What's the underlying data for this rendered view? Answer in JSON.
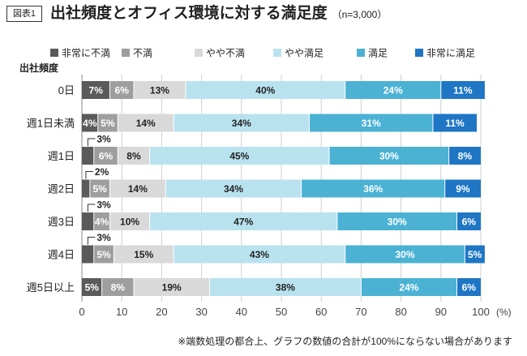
{
  "figure_label": "図表1",
  "title": "出社頻度とオフィス環境に対する満足度",
  "sample_note": "（n=3,000）",
  "footnote": "※端数処理の都合上、グラフの数値の合計が100%にならない場合があります",
  "colors": [
    "#5a5a5a",
    "#9e9e9e",
    "#d9d9d9",
    "#b9e2ef",
    "#4bb2d4",
    "#1e76c4"
  ],
  "chart_data": {
    "type": "bar",
    "orientation": "horizontal",
    "stacked": true,
    "ylabel": "出社頻度",
    "x_unit": "(%)",
    "xlim": [
      0,
      100
    ],
    "x_ticks": [
      0,
      10,
      20,
      30,
      40,
      50,
      60,
      70,
      80,
      90,
      100
    ],
    "grid": true,
    "legend_position": "top",
    "categories": [
      "0日",
      "週1日未満",
      "週1日",
      "週2日",
      "週3日",
      "週4日",
      "週5日以上"
    ],
    "series": [
      {
        "name": "非常に不満",
        "values": [
          7,
          4,
          3,
          2,
          3,
          3,
          5
        ]
      },
      {
        "name": "不満",
        "values": [
          6,
          5,
          6,
          5,
          4,
          5,
          8
        ]
      },
      {
        "name": "やや不満",
        "values": [
          13,
          14,
          8,
          14,
          10,
          15,
          19
        ]
      },
      {
        "name": "やや満足",
        "values": [
          40,
          34,
          45,
          34,
          47,
          43,
          38
        ]
      },
      {
        "name": "満足",
        "values": [
          24,
          31,
          30,
          36,
          30,
          30,
          24
        ]
      },
      {
        "name": "非常に満足",
        "values": [
          11,
          11,
          8,
          9,
          6,
          5,
          6
        ]
      }
    ]
  }
}
